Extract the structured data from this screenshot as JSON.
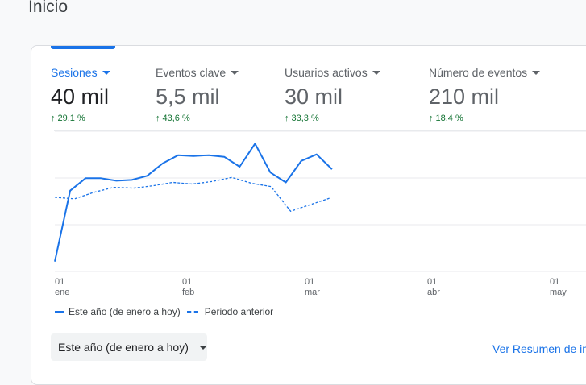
{
  "page": {
    "title": "Inicio"
  },
  "metrics": [
    {
      "label": "Sesiones",
      "value": "40 mil",
      "change": "29,1 %"
    },
    {
      "label": "Eventos clave",
      "value": "5,5 mil",
      "change": "43,6 %"
    },
    {
      "label": "Usuarios activos",
      "value": "30 mil",
      "change": "33,3 %"
    },
    {
      "label": "Número de eventos",
      "value": "210 mil",
      "change": "18,4 %"
    }
  ],
  "chart_data": {
    "type": "line",
    "x_ticks": [
      {
        "day": "01",
        "month": "ene"
      },
      {
        "day": "01",
        "month": "feb"
      },
      {
        "day": "01",
        "month": "mar"
      },
      {
        "day": "01",
        "month": "abr"
      },
      {
        "day": "01",
        "month": "may"
      }
    ],
    "series": [
      {
        "name": "Este año (de enero a hoy)",
        "style": "solid",
        "color": "#1a73e8",
        "values": [
          12,
          98,
          113,
          113,
          110,
          111,
          116,
          131,
          141,
          140,
          141,
          139,
          127,
          155,
          120,
          108,
          134,
          142,
          124
        ]
      },
      {
        "name": "Periodo anterior",
        "style": "dashed",
        "color": "#1a73e8",
        "values": [
          90,
          88,
          96,
          102,
          101,
          104,
          108,
          106,
          109,
          114,
          107,
          103,
          73,
          81,
          89
        ]
      }
    ],
    "ylim": [
      0,
      170
    ],
    "grid": true,
    "legend_position": "bottom-left"
  },
  "legend": {
    "current": "Este año (de enero a hoy)",
    "previous": "Periodo anterior"
  },
  "controls": {
    "date_range": "Este año (de enero a hoy)",
    "view_summary_link": "Ver Resumen de informes"
  }
}
